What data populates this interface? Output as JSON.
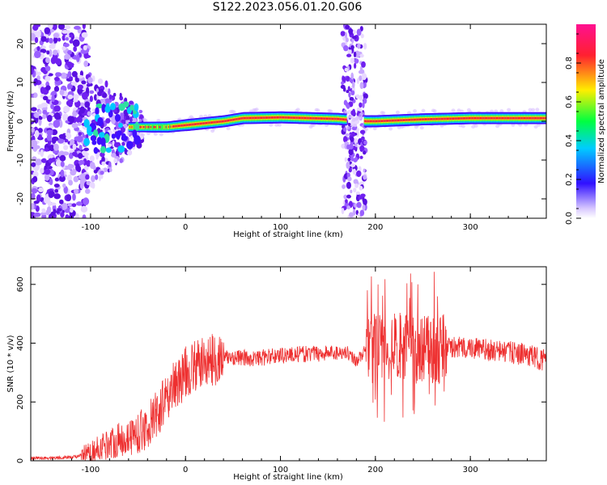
{
  "title": "S122.2023.056.01.20.G06",
  "chart_data": [
    {
      "type": "heatmap",
      "xlabel": "Height of straight line (km)",
      "ylabel": "Frequency (Hz)",
      "xlim": [
        -163,
        380
      ],
      "ylim": [
        -25,
        25
      ],
      "xticks": [
        -100,
        0,
        100,
        200,
        300
      ],
      "yticks": [
        -20,
        -10,
        0,
        10,
        20
      ],
      "colorbar": {
        "label": "Normalized spectral amplitude",
        "range": [
          0,
          1
        ],
        "ticks": [
          "0.0",
          "0.2",
          "0.4",
          "0.6",
          "0.8"
        ],
        "tick_values": [
          0,
          0.2,
          0.4,
          0.6,
          0.8
        ]
      },
      "line_center_freq": [
        {
          "x": -120,
          "y": -3
        },
        {
          "x": -90,
          "y": -2
        },
        {
          "x": -60,
          "y": -1.5
        },
        {
          "x": -40,
          "y": -1.5
        },
        {
          "x": -20,
          "y": -1.5
        },
        {
          "x": 0,
          "y": -1
        },
        {
          "x": 20,
          "y": -0.5
        },
        {
          "x": 40,
          "y": 0
        },
        {
          "x": 60,
          "y": 0.8
        },
        {
          "x": 100,
          "y": 1
        },
        {
          "x": 160,
          "y": 0.6
        },
        {
          "x": 190,
          "y": 0
        },
        {
          "x": 200,
          "y": 0
        },
        {
          "x": 250,
          "y": 0.5
        },
        {
          "x": 300,
          "y": 0.8
        },
        {
          "x": 380,
          "y": 0.8
        }
      ]
    },
    {
      "type": "line",
      "xlabel": "Height of straight line (km)",
      "ylabel": "SNR (10 * v/v)",
      "xlim": [
        -163,
        380
      ],
      "ylim": [
        0,
        660
      ],
      "xticks": [
        -100,
        0,
        100,
        200,
        300
      ],
      "yticks": [
        0,
        200,
        400,
        600
      ],
      "color": "#ee3030",
      "series": [
        {
          "points": [
            [
              -163,
              8
            ],
            [
              -140,
              10
            ],
            [
              -120,
              12
            ],
            [
              -100,
              22
            ],
            [
              -90,
              45
            ],
            [
              -80,
              60
            ],
            [
              -70,
              70
            ],
            [
              -60,
              80
            ],
            [
              -50,
              95
            ],
            [
              -40,
              115
            ],
            [
              -30,
              160
            ],
            [
              -20,
              210
            ],
            [
              -10,
              260
            ],
            [
              0,
              300
            ],
            [
              10,
              320
            ],
            [
              20,
              335
            ],
            [
              30,
              345
            ],
            [
              40,
              350
            ],
            [
              50,
              352
            ],
            [
              60,
              350
            ],
            [
              70,
              347
            ],
            [
              80,
              350
            ],
            [
              90,
              355
            ],
            [
              100,
              360
            ],
            [
              120,
              362
            ],
            [
              140,
              365
            ],
            [
              160,
              368
            ],
            [
              170,
              370
            ],
            [
              180,
              340
            ],
            [
              190,
              375
            ],
            [
              200,
              380
            ],
            [
              220,
              385
            ],
            [
              240,
              380
            ],
            [
              260,
              380
            ],
            [
              280,
              385
            ],
            [
              300,
              385
            ],
            [
              320,
              375
            ],
            [
              340,
              370
            ],
            [
              360,
              360
            ],
            [
              380,
              340
            ]
          ]
        }
      ]
    }
  ],
  "colors": {
    "snr_line": "#ee3030",
    "spectrum_dots": "#7020f0",
    "colorbar_stops": [
      "#ffffff",
      "#3010ff",
      "#00ccff",
      "#00ff40",
      "#ffee00",
      "#ff2030",
      "#ff1090"
    ]
  }
}
